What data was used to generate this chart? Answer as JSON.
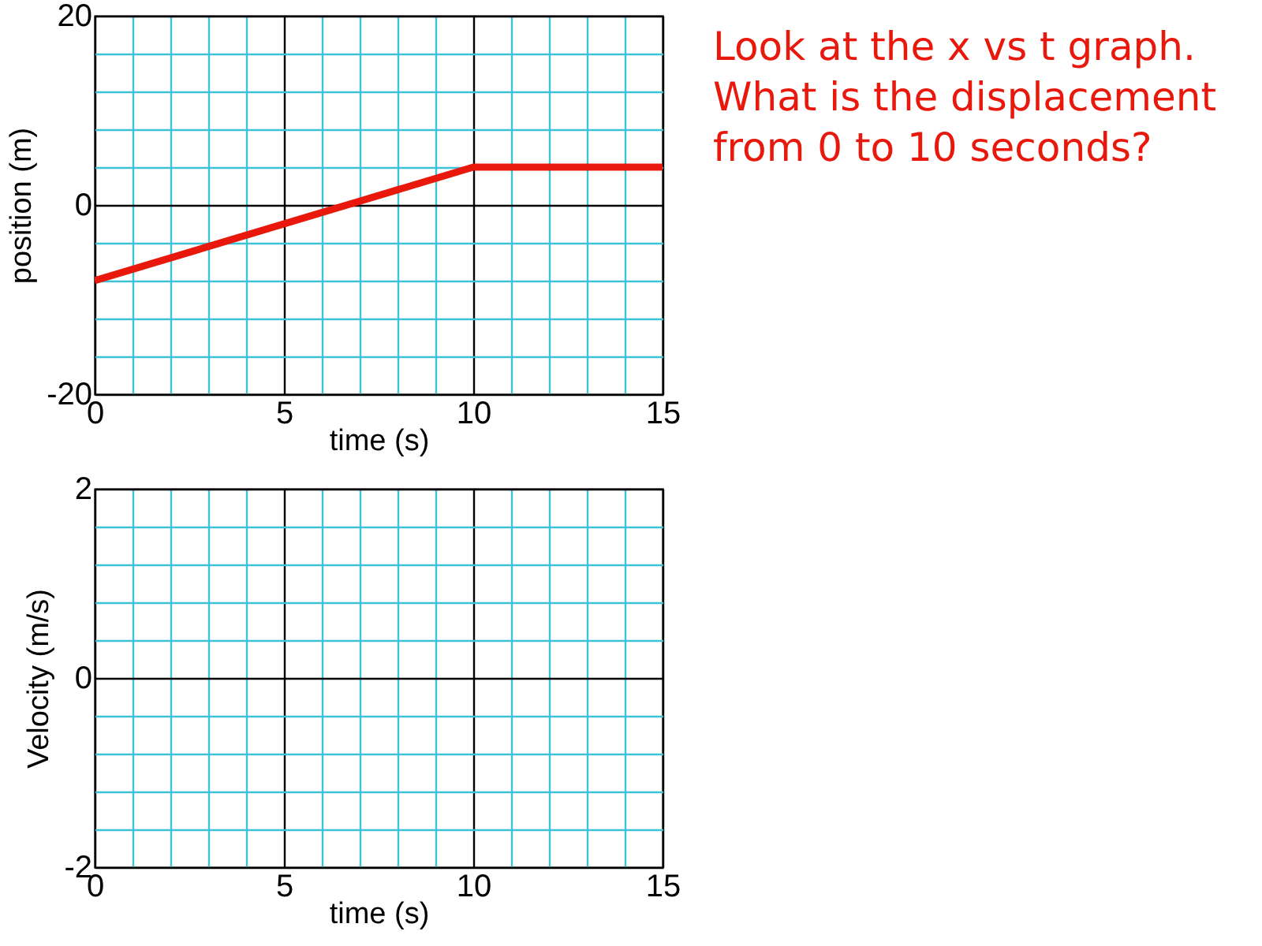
{
  "chart_data": [
    {
      "type": "line",
      "xlabel": "time (s)",
      "ylabel": "position (m)",
      "x": [
        0,
        10,
        15
      ],
      "values": [
        -8,
        4,
        4
      ],
      "color": "#e8180c",
      "xlim": [
        0,
        15
      ],
      "ylim": [
        -20,
        20
      ],
      "xticks": [
        0,
        {
          "value": 1,
          "label": null
        },
        {
          "value": 2,
          "label": null
        },
        {
          "value": 3,
          "label": null
        },
        {
          "value": 4,
          "label": null
        },
        5,
        {
          "value": 6,
          "label": null
        },
        {
          "value": 7,
          "label": null
        },
        {
          "value": 8,
          "label": null
        },
        {
          "value": 9,
          "label": null
        },
        10,
        {
          "value": 11,
          "label": null
        },
        {
          "value": 12,
          "label": null
        },
        {
          "value": 13,
          "label": null
        },
        {
          "value": 14,
          "label": null
        },
        15
      ],
      "yticks": [
        -20,
        {
          "value": -16,
          "label": null
        },
        {
          "value": -12,
          "label": null
        },
        {
          "value": -8,
          "label": null
        },
        {
          "value": -4,
          "label": null
        },
        0,
        {
          "value": 4,
          "label": null
        },
        {
          "value": 8,
          "label": null
        },
        {
          "value": 12,
          "label": null
        },
        {
          "value": 16,
          "label": null
        },
        20
      ],
      "grid": true,
      "annotations": [
        "Look at the x vs t graph. What is the displacement from 0 to 10 seconds?"
      ]
    },
    {
      "type": "line",
      "xlabel": "time (s)",
      "ylabel": "Velocity (m/s)",
      "color": "#e8180c",
      "xlim": [
        0,
        15
      ],
      "ylim": [
        -2,
        2
      ],
      "xticks": [
        0,
        {
          "value": 1,
          "label": null
        },
        {
          "value": 2,
          "label": null
        },
        {
          "value": 3,
          "label": null
        },
        {
          "value": 4,
          "label": null
        },
        5,
        {
          "value": 6,
          "label": null
        },
        {
          "value": 7,
          "label": null
        },
        {
          "value": 8,
          "label": null
        },
        {
          "value": 9,
          "label": null
        },
        10,
        {
          "value": 11,
          "label": null
        },
        {
          "value": 12,
          "label": null
        },
        {
          "value": 13,
          "label": null
        },
        {
          "value": 14,
          "label": null
        },
        15
      ],
      "yticks": [
        -2,
        {
          "value": -1.6,
          "label": null
        },
        {
          "value": -1.2,
          "label": null
        },
        {
          "value": -0.8,
          "label": null
        },
        {
          "value": -0.4,
          "label": null
        },
        0,
        {
          "value": 0.4,
          "label": null
        },
        {
          "value": 0.8,
          "label": null
        },
        {
          "value": 1.2,
          "label": null
        },
        {
          "value": 1.6,
          "label": null
        },
        2
      ],
      "grid": true
    }
  ]
}
